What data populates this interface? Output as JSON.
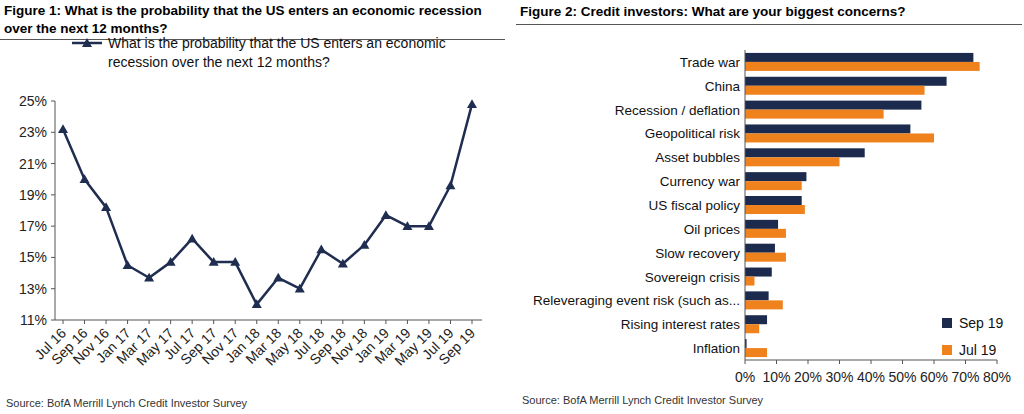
{
  "chart_data": [
    {
      "type": "line",
      "title": "Figure 1: What is the probability that the US enters an economic recession over the next 12 months?",
      "source": "Source:  BofA Merrill Lynch Credit Investor Survey",
      "categories": [
        "Jul 16",
        "Sep 16",
        "Nov 16",
        "Jan 17",
        "Mar 17",
        "May 17",
        "Jul 17",
        "Sep 17",
        "Nov 17",
        "Jan 18",
        "Mar 18",
        "May 18",
        "Jul 18",
        "Sep 18",
        "Nov 18",
        "Jan 19",
        "Mar 19",
        "May 19",
        "Jul 19",
        "Sep 19"
      ],
      "series": [
        {
          "name": "What is the probability that the US enters an economic recession over the next 12 months?",
          "color": "#1f2d50",
          "marker": "triangle",
          "values": [
            23.2,
            20.0,
            18.2,
            14.5,
            13.7,
            14.7,
            16.2,
            14.7,
            14.7,
            12.0,
            13.7,
            13.0,
            15.5,
            14.6,
            15.8,
            17.7,
            17.0,
            17.0,
            19.6,
            24.8
          ]
        }
      ],
      "ylim": [
        11,
        25
      ],
      "yticks": [
        {
          "value": 11,
          "label": "11%"
        },
        {
          "value": 13,
          "label": "13%"
        },
        {
          "value": 15,
          "label": "15%"
        },
        {
          "value": 17,
          "label": "17%"
        },
        {
          "value": 19,
          "label": "19%"
        },
        {
          "value": 21,
          "label": "21%"
        },
        {
          "value": 23,
          "label": "23%"
        },
        {
          "value": 25,
          "label": "25%"
        }
      ],
      "grid": false,
      "legend": "top-left"
    },
    {
      "type": "bar",
      "orientation": "horizontal",
      "title": "Figure 2: Credit investors: What are your biggest concerns?",
      "source": "Source:  BofA Merrill Lynch Credit Investor Survey",
      "categories": [
        "Trade war",
        "China",
        "Recession / deflation",
        "Geopolitical risk",
        "Asset bubbles",
        "Currency war",
        "US fiscal policy",
        "Oil prices",
        "Slow recovery",
        "Sovereign crisis",
        "Releveraging event risk (such as...",
        "Rising interest rates",
        "Inflation"
      ],
      "series": [
        {
          "name": "Sep 19",
          "color": "#1b2a4d",
          "values": [
            72.5,
            64,
            56,
            52.5,
            38,
            19.5,
            18,
            10.5,
            9.5,
            8.5,
            7.5,
            7,
            0.5
          ]
        },
        {
          "name": "Jul 19",
          "color": "#f0821e",
          "values": [
            74.5,
            57,
            44,
            60,
            30,
            18,
            19,
            13,
            13,
            3,
            12,
            4.5,
            7
          ]
        }
      ],
      "xlim": [
        0,
        80
      ],
      "xticks": [
        {
          "value": 0,
          "label": "0%"
        },
        {
          "value": 10,
          "label": "10%"
        },
        {
          "value": 20,
          "label": "20%"
        },
        {
          "value": 30,
          "label": "30%"
        },
        {
          "value": 40,
          "label": "40%"
        },
        {
          "value": 50,
          "label": "50%"
        },
        {
          "value": 60,
          "label": "60%"
        },
        {
          "value": 70,
          "label": "70%"
        },
        {
          "value": 80,
          "label": "80%"
        }
      ],
      "grid": false,
      "legend": "bottom-right"
    }
  ]
}
